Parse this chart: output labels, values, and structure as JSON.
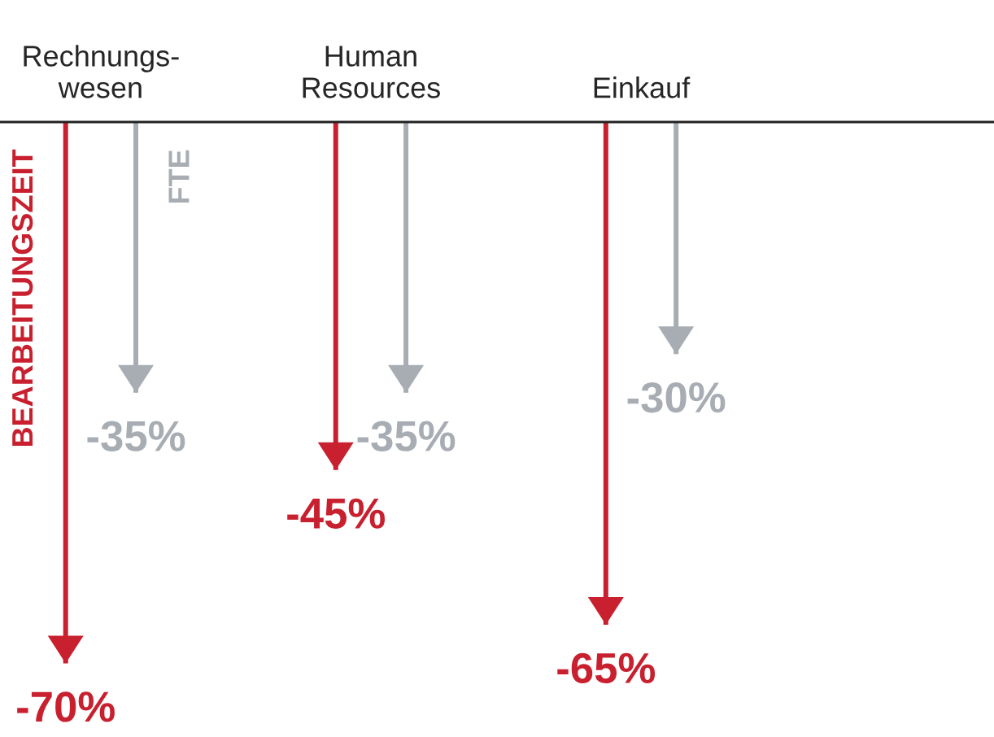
{
  "chart_data": {
    "type": "bar",
    "categories": [
      "Rechnungs-\nwesen",
      "Human\nResources",
      "Einkauf"
    ],
    "series": [
      {
        "name": "BEARBEITUNGSZEIT",
        "color": "#c8202f",
        "values": [
          -70,
          -45,
          -65
        ],
        "value_labels": [
          "-70%",
          "-45%",
          "-65%"
        ]
      },
      {
        "name": "FTE",
        "color": "#a7adb3",
        "values": [
          -35,
          -35,
          -30
        ],
        "value_labels": [
          "-35%",
          "-35%",
          "-30%"
        ]
      }
    ],
    "grid": false,
    "legend": false
  }
}
